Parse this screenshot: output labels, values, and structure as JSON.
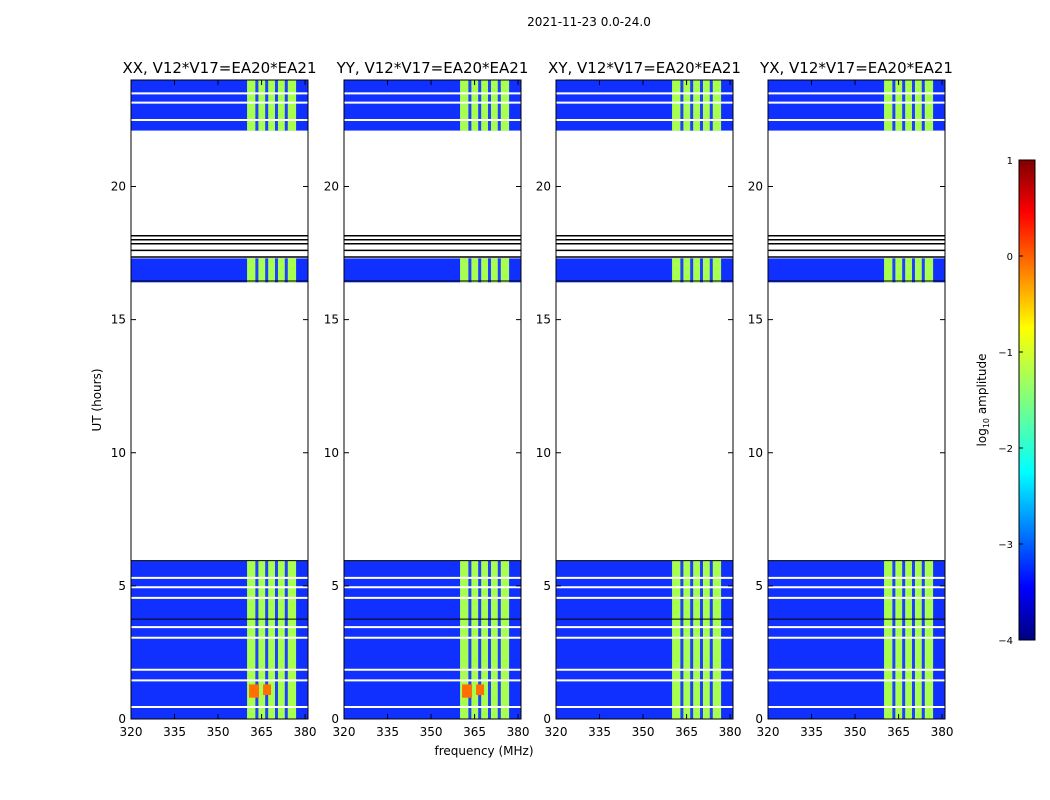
{
  "figure": {
    "suptitle": "2021-11-23 0.0-24.0",
    "xlabel": "frequency (MHz)",
    "ylabel": "UT (hours)"
  },
  "chart_data": {
    "type": "heatmap",
    "title": "2021-11-23 0.0-24.0",
    "xlabel": "frequency (MHz)",
    "ylabel": "UT (hours)",
    "xlim": [
      320,
      381
    ],
    "ylim": [
      0,
      24
    ],
    "xticks": [
      "320",
      "335",
      "350",
      "365",
      "380"
    ],
    "yticks": [
      "0",
      "5",
      "10",
      "15",
      "20"
    ],
    "panels": [
      {
        "title": "XX, V12*V17=EA20*EA21"
      },
      {
        "title": "YY, V12*V17=EA20*EA21"
      },
      {
        "title": "XY, V12*V17=EA20*EA21"
      },
      {
        "title": "YX, V12*V17=EA20*EA21"
      }
    ],
    "data_blocks_ut": [
      {
        "start": 0.0,
        "end": 5.95
      },
      {
        "start": 16.4,
        "end": 17.3
      },
      {
        "start": 22.1,
        "end": 24.0
      }
    ],
    "bright_band_mhz": [
      360,
      380
    ],
    "colorbar": {
      "label": "log10 amplitude",
      "range": [
        -4,
        1
      ],
      "ticks": [
        "−4",
        "−3",
        "−2",
        "−1",
        "0",
        "1"
      ],
      "colormap": "jet"
    }
  },
  "colors": {
    "background_level": "#1030ff",
    "band_level": "#a8ff50",
    "hot_level": "#ff7000"
  }
}
